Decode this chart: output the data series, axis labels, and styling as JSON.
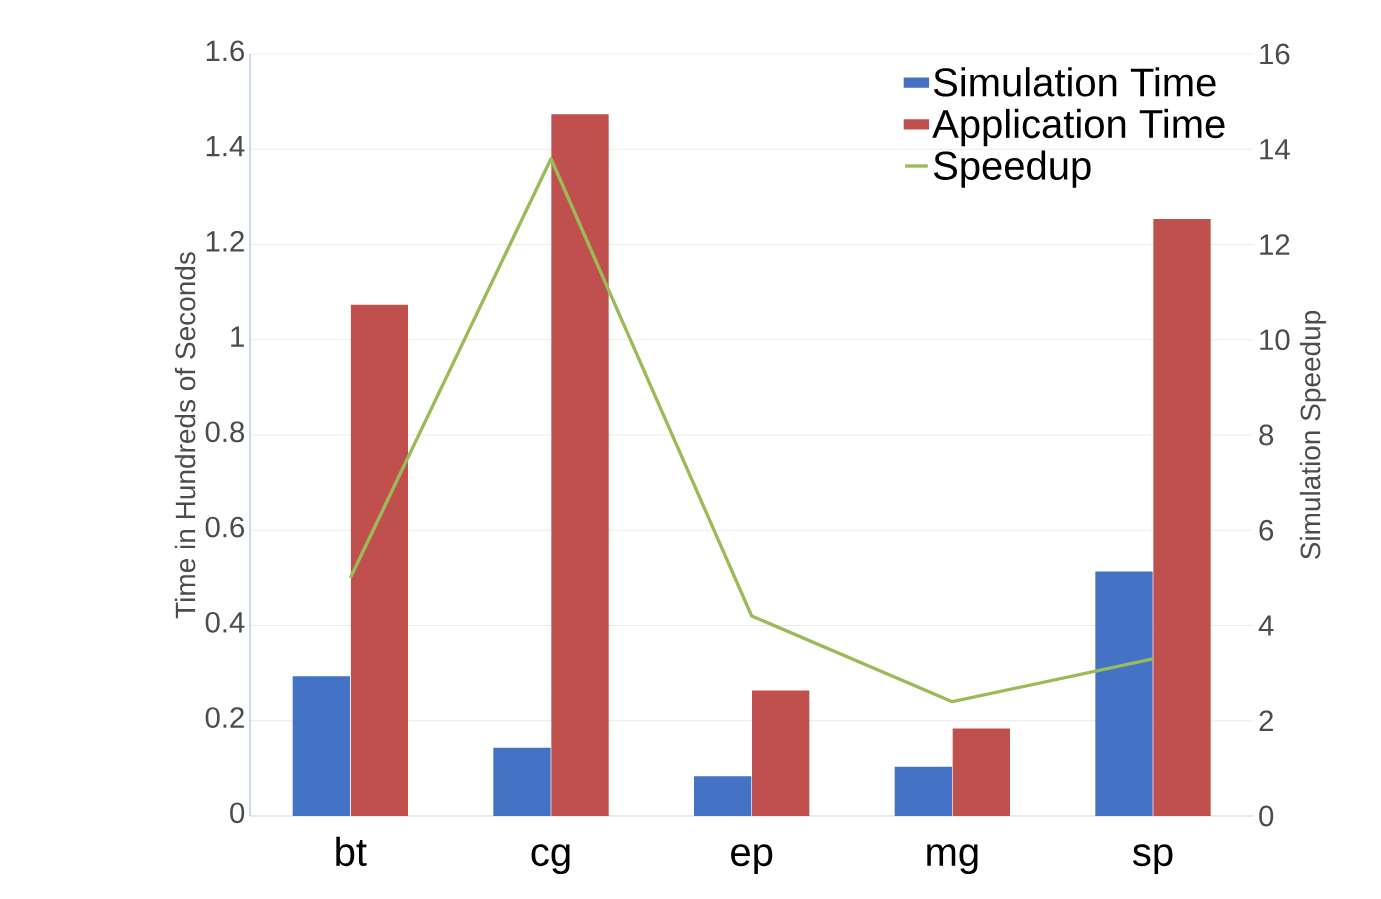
{
  "chart_data": {
    "type": "bar",
    "categories": [
      "bt",
      "cg",
      "ep",
      "mg",
      "sp"
    ],
    "ylabel": "Time in Hundreds of Seconds",
    "y2label": "Simulation Speedup",
    "ylim": [
      0,
      1.6
    ],
    "yticks": [
      0,
      0.2,
      0.4,
      0.6,
      0.8,
      1,
      1.2,
      1.4,
      1.6
    ],
    "y2lim": [
      0,
      16
    ],
    "y2ticks": [
      0,
      2,
      4,
      6,
      8,
      10,
      12,
      14,
      16
    ],
    "grid": "y",
    "legend": "top right",
    "series": [
      {
        "name": "Simulation Time",
        "color": "#4472c4",
        "values": [
          0.29,
          0.14,
          0.08,
          0.1,
          0.51
        ]
      },
      {
        "name": "Application Time",
        "color": "#c0504d",
        "values": [
          1.07,
          1.47,
          0.26,
          0.18,
          1.25
        ]
      },
      {
        "name": "Speedup",
        "type": "line",
        "axis": "y2",
        "color": "#9bbb59",
        "values": [
          5.0,
          13.8,
          4.2,
          2.4,
          3.3
        ]
      }
    ]
  }
}
